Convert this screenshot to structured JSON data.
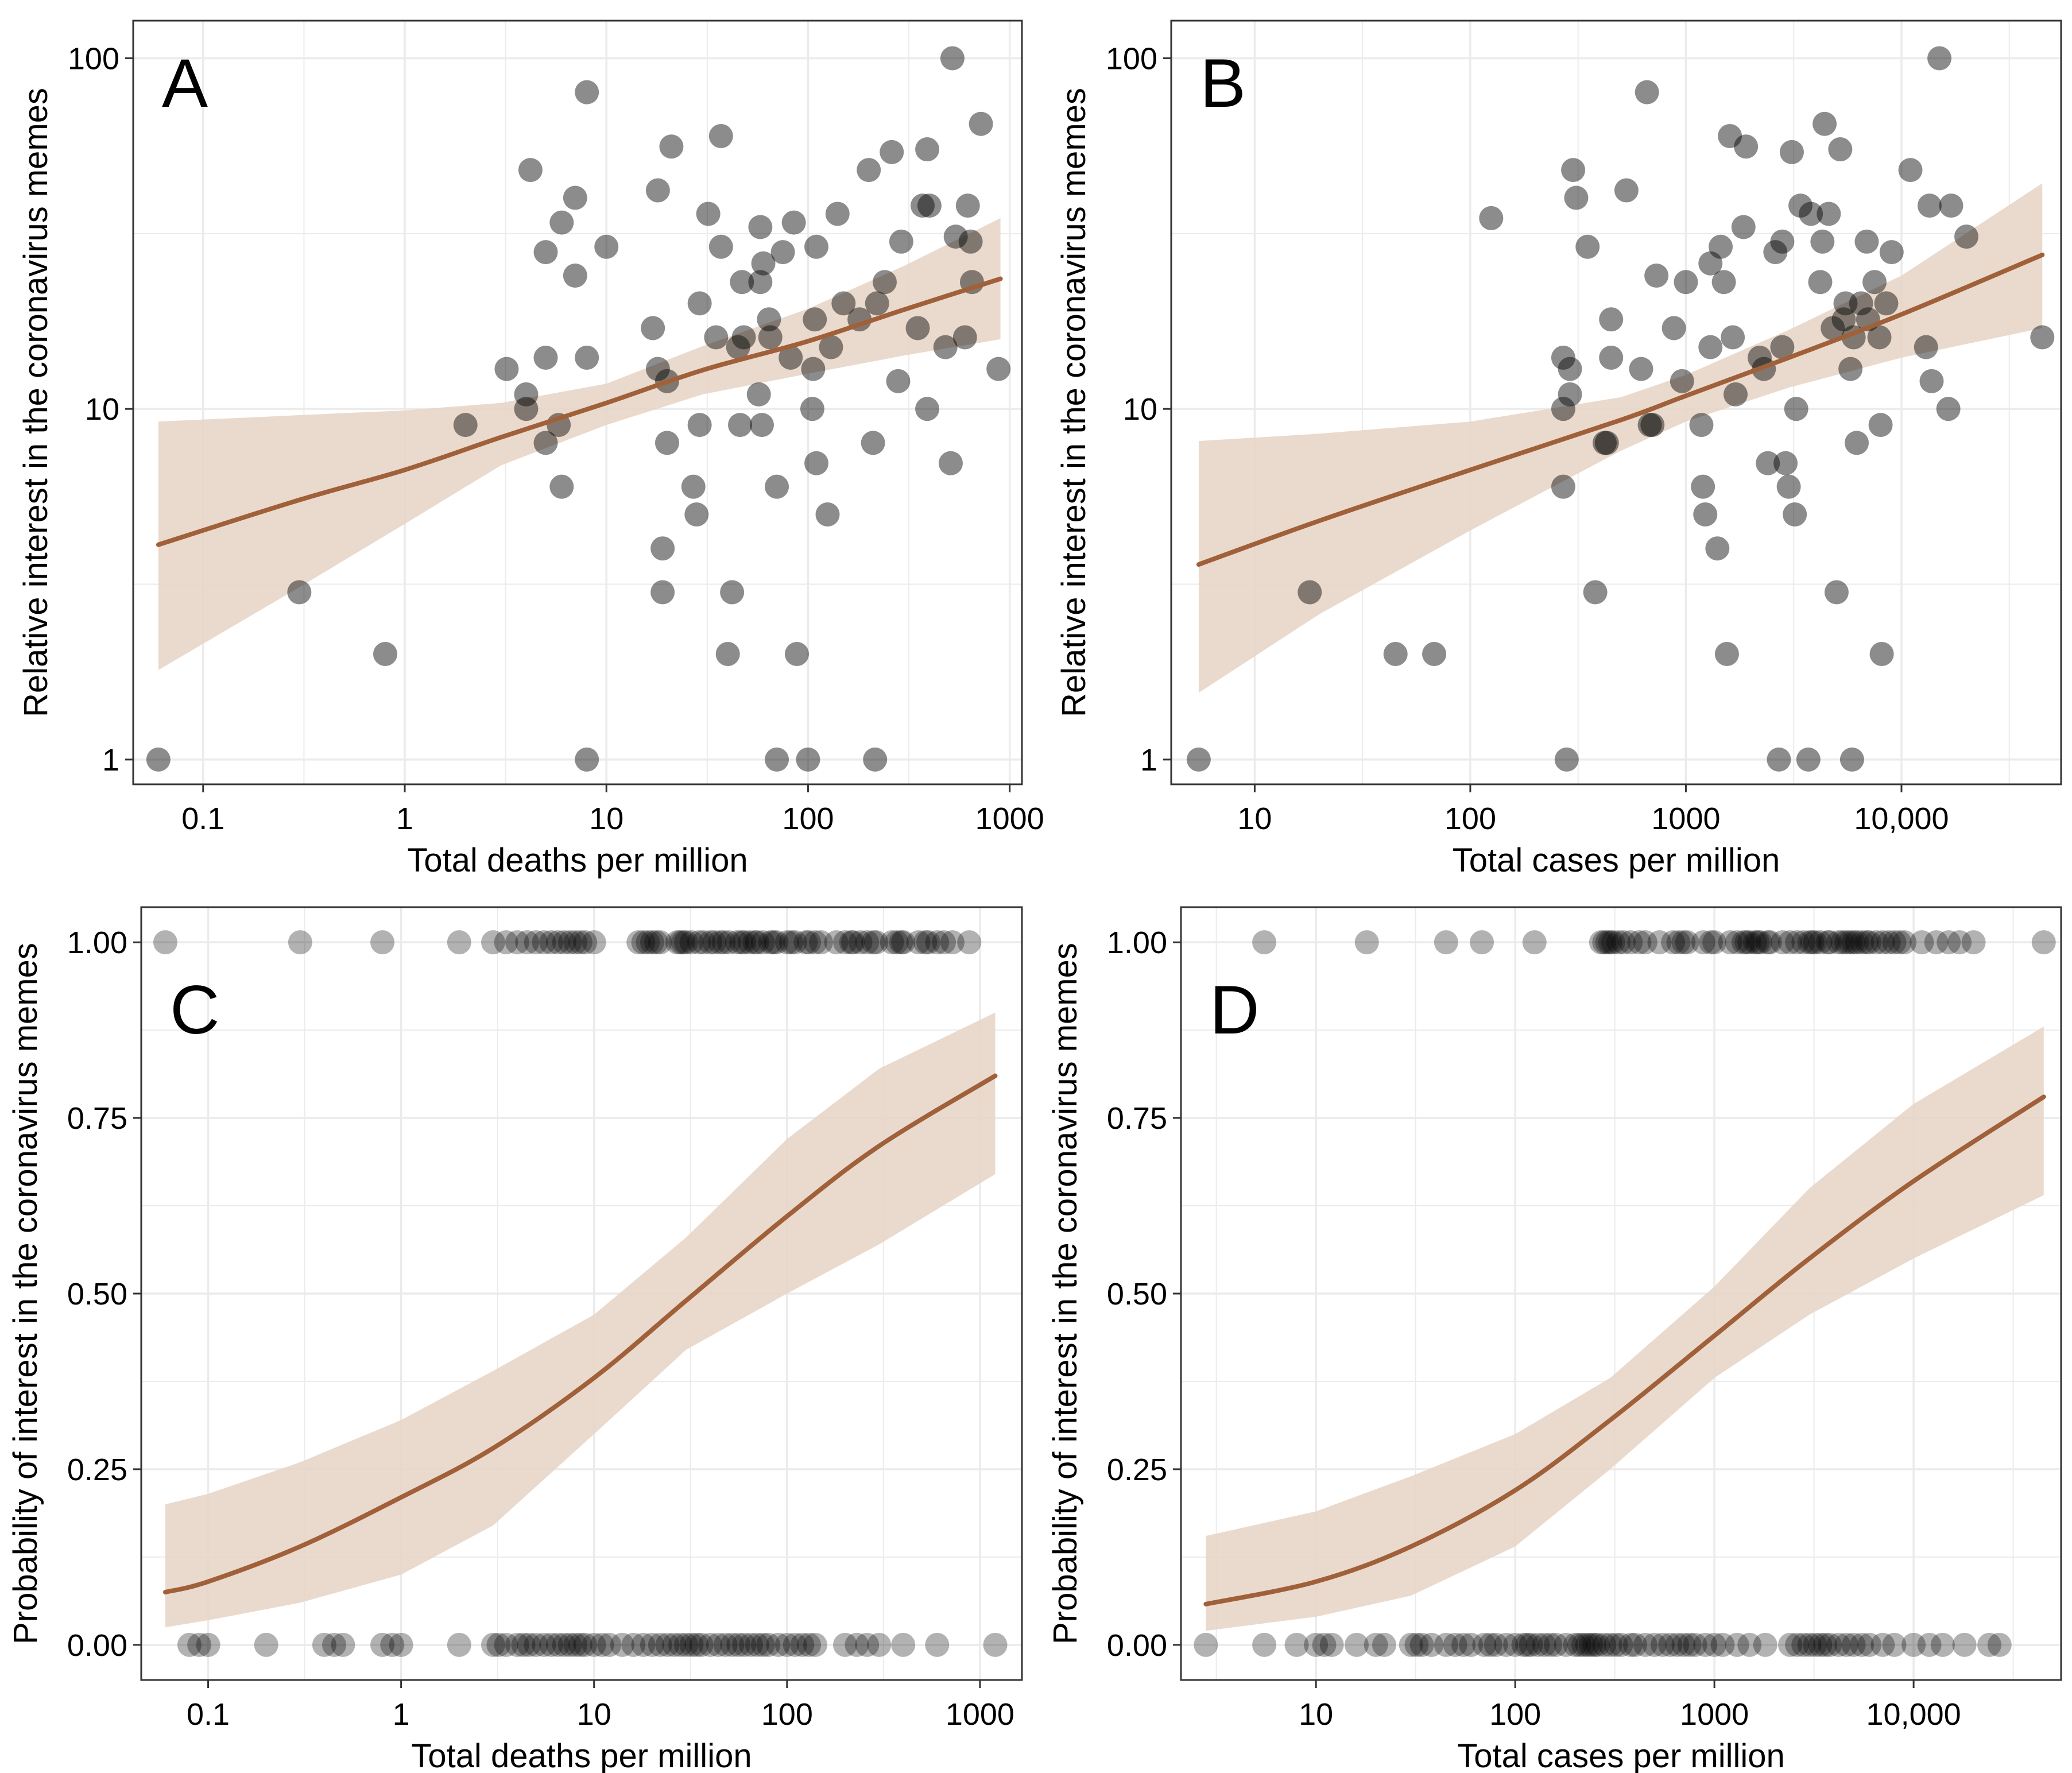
{
  "colors": {
    "line": "#A0603A",
    "band": "#E8D6C8",
    "point": "#000000",
    "grid": "#EBEBEB",
    "frame": "#333333",
    "text": "#000000"
  },
  "chart_data": [
    {
      "panel": "A",
      "type": "scatter",
      "xlabel": "Total deaths per million",
      "ylabel": "Relative interest in the coronavirus memes",
      "xscale": "log",
      "yscale": "log",
      "xlim": [
        0.045,
        1150
      ],
      "ylim": [
        0.85,
        128
      ],
      "xticks": [
        0.1,
        1,
        10,
        100,
        1000
      ],
      "xtick_labels": [
        "0.1",
        "1",
        "10",
        "100",
        "1000"
      ],
      "yticks": [
        1,
        10,
        100
      ],
      "ytick_labels": [
        "1",
        "10",
        "100"
      ],
      "point_opacity": 0.45,
      "points": [
        [
          0.06,
          1
        ],
        [
          0.3,
          3
        ],
        [
          0.8,
          2
        ],
        [
          2,
          9
        ],
        [
          3.2,
          13
        ],
        [
          4,
          11
        ],
        [
          4,
          10
        ],
        [
          4.2,
          48
        ],
        [
          5,
          28
        ],
        [
          5,
          14
        ],
        [
          5,
          8
        ],
        [
          5.8,
          9
        ],
        [
          6,
          6
        ],
        [
          6,
          34
        ],
        [
          7,
          24
        ],
        [
          7,
          40
        ],
        [
          8,
          80
        ],
        [
          8,
          14
        ],
        [
          8,
          1
        ],
        [
          10,
          29
        ],
        [
          17,
          17
        ],
        [
          18,
          42
        ],
        [
          18,
          13
        ],
        [
          19,
          3
        ],
        [
          19,
          4
        ],
        [
          20,
          12
        ],
        [
          20,
          8
        ],
        [
          21,
          56
        ],
        [
          27,
          6
        ],
        [
          28,
          5
        ],
        [
          29,
          20
        ],
        [
          29,
          9
        ],
        [
          32,
          36
        ],
        [
          35,
          16
        ],
        [
          37,
          60
        ],
        [
          37,
          29
        ],
        [
          40,
          2
        ],
        [
          42,
          3
        ],
        [
          45,
          15
        ],
        [
          46,
          9
        ],
        [
          47,
          23
        ],
        [
          48,
          16
        ],
        [
          57,
          11
        ],
        [
          58,
          33
        ],
        [
          58,
          23
        ],
        [
          59,
          9
        ],
        [
          60,
          26
        ],
        [
          64,
          18
        ],
        [
          65,
          16
        ],
        [
          70,
          6
        ],
        [
          70,
          1
        ],
        [
          75,
          28
        ],
        [
          82,
          14
        ],
        [
          85,
          34
        ],
        [
          88,
          2
        ],
        [
          100,
          1
        ],
        [
          105,
          10
        ],
        [
          106,
          13
        ],
        [
          108,
          18
        ],
        [
          110,
          29
        ],
        [
          110,
          7
        ],
        [
          125,
          5
        ],
        [
          130,
          15
        ],
        [
          140,
          36
        ],
        [
          150,
          20
        ],
        [
          180,
          18
        ],
        [
          200,
          48
        ],
        [
          210,
          8
        ],
        [
          215,
          1
        ],
        [
          220,
          20
        ],
        [
          240,
          23
        ],
        [
          260,
          54
        ],
        [
          280,
          12
        ],
        [
          290,
          30
        ],
        [
          350,
          17
        ],
        [
          370,
          38
        ],
        [
          390,
          55
        ],
        [
          390,
          10
        ],
        [
          400,
          38
        ],
        [
          480,
          15
        ],
        [
          510,
          7
        ],
        [
          520,
          100
        ],
        [
          540,
          31
        ],
        [
          600,
          16
        ],
        [
          620,
          38
        ],
        [
          640,
          30
        ],
        [
          650,
          23
        ],
        [
          720,
          65
        ],
        [
          880,
          13
        ]
      ],
      "fit": {
        "x": [
          0.06,
          0.3,
          1,
          3,
          10,
          30,
          100,
          300,
          900
        ],
        "y": [
          4.1,
          5.5,
          6.7,
          8.3,
          10.4,
          12.9,
          15.6,
          19.2,
          23.5
        ]
      },
      "band": {
        "x": [
          0.06,
          0.3,
          1,
          3,
          10,
          30,
          100,
          300,
          900
        ],
        "lower": [
          1.8,
          3.1,
          4.7,
          6.9,
          9.0,
          11.0,
          12.6,
          14.2,
          15.8
        ],
        "upper": [
          9.2,
          9.6,
          9.9,
          10.4,
          11.8,
          15.1,
          19.3,
          25.6,
          35.0
        ]
      }
    },
    {
      "panel": "B",
      "type": "scatter",
      "xlabel": "Total cases per million",
      "ylabel": "Relative interest in the coronavirus memes",
      "xscale": "log",
      "yscale": "log",
      "xlim": [
        4.1,
        55000
      ],
      "ylim": [
        0.85,
        128
      ],
      "xticks": [
        10,
        100,
        1000,
        10000
      ],
      "xtick_labels": [
        "10",
        "100",
        "1000",
        "10,000"
      ],
      "yticks": [
        1,
        10,
        100
      ],
      "ytick_labels": [
        "1",
        "10",
        "100"
      ],
      "point_opacity": 0.45,
      "points": [
        [
          5.5,
          1
        ],
        [
          18,
          3
        ],
        [
          45,
          2
        ],
        [
          68,
          2
        ],
        [
          125,
          35
        ],
        [
          270,
          14
        ],
        [
          270,
          10
        ],
        [
          270,
          6
        ],
        [
          280,
          1
        ],
        [
          290,
          13
        ],
        [
          290,
          11
        ],
        [
          300,
          48
        ],
        [
          310,
          40
        ],
        [
          350,
          29
        ],
        [
          380,
          3
        ],
        [
          420,
          8
        ],
        [
          430,
          8
        ],
        [
          450,
          14
        ],
        [
          450,
          18
        ],
        [
          530,
          42
        ],
        [
          620,
          13
        ],
        [
          660,
          80
        ],
        [
          680,
          9
        ],
        [
          700,
          9
        ],
        [
          730,
          24
        ],
        [
          880,
          17
        ],
        [
          960,
          12
        ],
        [
          1000,
          23
        ],
        [
          1180,
          9
        ],
        [
          1200,
          6
        ],
        [
          1230,
          5
        ],
        [
          1300,
          26
        ],
        [
          1300,
          15
        ],
        [
          1400,
          4
        ],
        [
          1450,
          29
        ],
        [
          1500,
          23
        ],
        [
          1550,
          2
        ],
        [
          1600,
          60
        ],
        [
          1650,
          16
        ],
        [
          1700,
          11
        ],
        [
          1850,
          33
        ],
        [
          1900,
          56
        ],
        [
          2200,
          14
        ],
        [
          2300,
          13
        ],
        [
          2400,
          7
        ],
        [
          2600,
          28
        ],
        [
          2700,
          1
        ],
        [
          2800,
          30
        ],
        [
          2800,
          15
        ],
        [
          2900,
          7
        ],
        [
          3000,
          6
        ],
        [
          3100,
          54
        ],
        [
          3200,
          5
        ],
        [
          3250,
          10
        ],
        [
          3400,
          38
        ],
        [
          3700,
          1
        ],
        [
          3800,
          36
        ],
        [
          4200,
          23
        ],
        [
          4300,
          30
        ],
        [
          4400,
          65
        ],
        [
          4600,
          36
        ],
        [
          4800,
          17
        ],
        [
          5000,
          3
        ],
        [
          5200,
          55
        ],
        [
          5400,
          18
        ],
        [
          5500,
          20
        ],
        [
          5800,
          13
        ],
        [
          5900,
          1
        ],
        [
          6000,
          16
        ],
        [
          6200,
          8
        ],
        [
          6500,
          20
        ],
        [
          6900,
          30
        ],
        [
          7000,
          18
        ],
        [
          7500,
          23
        ],
        [
          7900,
          16
        ],
        [
          8000,
          9
        ],
        [
          8100,
          2
        ],
        [
          8500,
          20
        ],
        [
          9000,
          28
        ],
        [
          11000,
          48
        ],
        [
          13000,
          15
        ],
        [
          13500,
          38
        ],
        [
          13800,
          12
        ],
        [
          15000,
          100
        ],
        [
          16500,
          10
        ],
        [
          17000,
          38
        ],
        [
          20000,
          31
        ],
        [
          45000,
          16
        ]
      ],
      "fit": {
        "x": [
          5.5,
          20,
          100,
          500,
          1000,
          3000,
          10000,
          45000
        ],
        "y": [
          3.6,
          4.8,
          6.7,
          9.3,
          10.9,
          14.0,
          18.6,
          27.5
        ]
      },
      "band": {
        "x": [
          5.5,
          20,
          100,
          500,
          1000,
          3000,
          10000,
          45000
        ],
        "lower": [
          1.55,
          2.6,
          4.5,
          7.6,
          9.2,
          11.5,
          14.0,
          17.0
        ],
        "upper": [
          8.1,
          8.5,
          9.2,
          10.8,
          12.5,
          16.8,
          24.0,
          44.0
        ]
      }
    },
    {
      "panel": "C",
      "type": "scatter",
      "xlabel": "Total deaths per million",
      "ylabel": "Probability of interest in the coronavirus memes",
      "xscale": "log",
      "yscale": "linear",
      "xlim": [
        0.045,
        1650
      ],
      "ylim": [
        -0.05,
        1.05
      ],
      "xticks": [
        0.1,
        1,
        10,
        100,
        1000
      ],
      "xtick_labels": [
        "0.1",
        "1",
        "10",
        "100",
        "1000"
      ],
      "yticks": [
        0,
        0.25,
        0.5,
        0.75,
        1
      ],
      "ytick_labels": [
        "0.00",
        "0.25",
        "0.50",
        "0.75",
        "1.00"
      ],
      "point_opacity": 0.3,
      "points_at_1": [
        0.06,
        0.3,
        0.8,
        2,
        3,
        3.5,
        4,
        4.5,
        5,
        5.5,
        6,
        6.5,
        7,
        7.5,
        8,
        8.5,
        9,
        10,
        17,
        18,
        19,
        20,
        21,
        22,
        27,
        28,
        29,
        30,
        32,
        35,
        37,
        40,
        42,
        45,
        47,
        50,
        55,
        58,
        60,
        64,
        68,
        70,
        75,
        82,
        85,
        88,
        100,
        105,
        110,
        125,
        130,
        140,
        150,
        180,
        200,
        215,
        220,
        240,
        260,
        280,
        290,
        350,
        370,
        390,
        400,
        480,
        520,
        540,
        600,
        650,
        720,
        880
      ],
      "points_at_0": [
        0.08,
        0.09,
        0.1,
        0.2,
        0.4,
        0.45,
        0.5,
        0.8,
        0.9,
        1,
        2,
        3,
        3.2,
        3.5,
        4,
        4.3,
        4.6,
        5,
        5.5,
        6,
        6.5,
        7,
        7.5,
        8,
        8.5,
        9,
        10,
        11,
        12,
        14,
        16,
        18,
        20,
        22,
        24,
        26,
        28,
        30,
        32,
        34,
        36,
        40,
        44,
        48,
        52,
        56,
        60,
        65,
        70,
        75,
        80,
        90,
        100,
        110,
        120,
        130,
        140,
        200,
        230,
        260,
        300,
        400,
        600,
        1200
      ],
      "fit": {
        "x": [
          0.06,
          0.1,
          0.3,
          1,
          3,
          10,
          30,
          100,
          300,
          1200
        ],
        "y": [
          0.075,
          0.09,
          0.14,
          0.21,
          0.28,
          0.38,
          0.49,
          0.61,
          0.71,
          0.81
        ]
      },
      "band": {
        "x": [
          0.06,
          0.1,
          0.3,
          1,
          3,
          10,
          30,
          100,
          300,
          1200
        ],
        "lower": [
          0.025,
          0.035,
          0.06,
          0.1,
          0.17,
          0.3,
          0.42,
          0.5,
          0.57,
          0.67
        ],
        "upper": [
          0.2,
          0.215,
          0.26,
          0.32,
          0.39,
          0.47,
          0.58,
          0.72,
          0.82,
          0.9
        ]
      }
    },
    {
      "panel": "D",
      "type": "scatter",
      "xlabel": "Total cases per million",
      "ylabel": "Probability of interest in the coronavirus memes",
      "xscale": "log",
      "yscale": "linear",
      "xlim": [
        2.1,
        55000
      ],
      "ylim": [
        -0.05,
        1.05
      ],
      "xticks": [
        10,
        100,
        1000,
        10000
      ],
      "xtick_labels": [
        "10",
        "100",
        "1000",
        "10,000"
      ],
      "yticks": [
        0,
        0.25,
        0.5,
        0.75,
        1
      ],
      "ytick_labels": [
        "0.00",
        "0.25",
        "0.50",
        "0.75",
        "1.00"
      ],
      "point_opacity": 0.3,
      "points_at_1": [
        5.5,
        18,
        45,
        68,
        125,
        270,
        280,
        290,
        300,
        310,
        330,
        350,
        380,
        420,
        450,
        530,
        620,
        660,
        700,
        730,
        880,
        960,
        1000,
        1200,
        1300,
        1400,
        1450,
        1500,
        1600,
        1650,
        1700,
        1850,
        1900,
        2200,
        2400,
        2600,
        2800,
        3000,
        3100,
        3200,
        3400,
        3700,
        3800,
        4200,
        4400,
        4600,
        4800,
        5000,
        5200,
        5500,
        5800,
        6000,
        6500,
        7000,
        7500,
        8000,
        8500,
        9000,
        11000,
        13000,
        15000,
        17000,
        20000,
        45000
      ],
      "points_at_0": [
        2.8,
        5.5,
        8,
        10,
        11,
        12,
        16,
        20,
        22,
        30,
        32,
        34,
        38,
        45,
        50,
        55,
        60,
        70,
        75,
        80,
        90,
        100,
        110,
        115,
        120,
        130,
        140,
        150,
        160,
        180,
        200,
        210,
        220,
        230,
        240,
        250,
        260,
        280,
        300,
        320,
        340,
        380,
        400,
        450,
        500,
        550,
        600,
        650,
        700,
        750,
        800,
        900,
        1000,
        1100,
        1300,
        1500,
        1800,
        2400,
        2600,
        2800,
        3000,
        3200,
        3400,
        3600,
        3800,
        4200,
        4600,
        5000,
        5500,
        6000,
        7000,
        8000,
        10000,
        12000,
        14000,
        18000,
        24000,
        27000
      ],
      "fit": {
        "x": [
          2.8,
          10,
          30,
          100,
          300,
          1000,
          3000,
          10000,
          45000
        ],
        "y": [
          0.058,
          0.09,
          0.14,
          0.22,
          0.32,
          0.44,
          0.55,
          0.66,
          0.78
        ]
      },
      "band": {
        "x": [
          2.8,
          10,
          30,
          100,
          300,
          1000,
          3000,
          10000,
          45000
        ],
        "lower": [
          0.02,
          0.04,
          0.07,
          0.14,
          0.25,
          0.38,
          0.47,
          0.55,
          0.64
        ],
        "upper": [
          0.155,
          0.19,
          0.24,
          0.3,
          0.38,
          0.51,
          0.65,
          0.77,
          0.88
        ]
      }
    }
  ]
}
